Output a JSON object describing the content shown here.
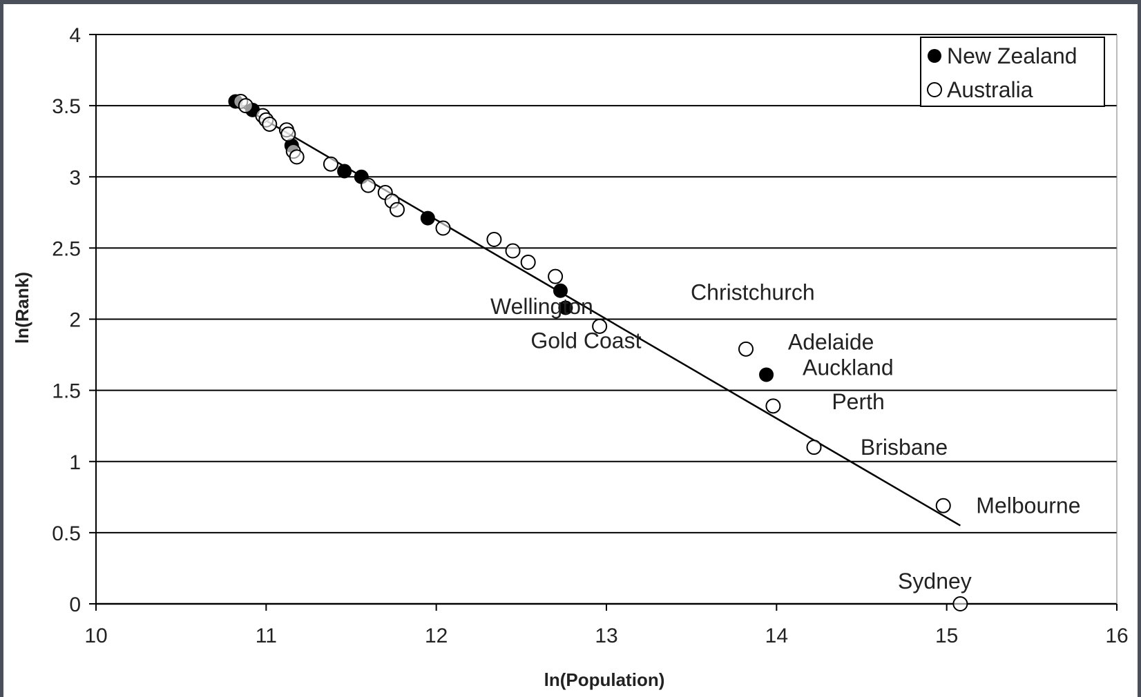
{
  "chart_data": {
    "type": "scatter",
    "xlabel": "ln(Population)",
    "ylabel": "ln(Rank)",
    "xlim": [
      10,
      16
    ],
    "ylim": [
      0,
      4
    ],
    "xticks": [
      "10",
      "11",
      "12",
      "13",
      "14",
      "15",
      "16"
    ],
    "yticks": [
      "0",
      "0.5",
      "1",
      "1.5",
      "2",
      "2.5",
      "3",
      "3.5",
      "4"
    ],
    "grid": "horizontal",
    "legend_position": "top-right",
    "series": [
      {
        "name": "New Zealand",
        "marker": "filled-circle",
        "color": "#000000",
        "points": [
          {
            "x": 10.82,
            "y": 3.53
          },
          {
            "x": 10.92,
            "y": 3.47
          },
          {
            "x": 11.15,
            "y": 3.22
          },
          {
            "x": 11.46,
            "y": 3.04
          },
          {
            "x": 11.56,
            "y": 3.0
          },
          {
            "x": 11.95,
            "y": 2.71
          },
          {
            "x": 12.73,
            "y": 2.2
          },
          {
            "x": 12.76,
            "y": 2.08
          },
          {
            "x": 13.94,
            "y": 1.61
          }
        ]
      },
      {
        "name": "Australia",
        "marker": "open-circle",
        "color": "#000000",
        "points": [
          {
            "x": 10.85,
            "y": 3.53
          },
          {
            "x": 10.88,
            "y": 3.5
          },
          {
            "x": 10.98,
            "y": 3.43
          },
          {
            "x": 11.0,
            "y": 3.4
          },
          {
            "x": 11.02,
            "y": 3.37
          },
          {
            "x": 11.12,
            "y": 3.33
          },
          {
            "x": 11.13,
            "y": 3.3
          },
          {
            "x": 11.16,
            "y": 3.18
          },
          {
            "x": 11.18,
            "y": 3.14
          },
          {
            "x": 11.38,
            "y": 3.09
          },
          {
            "x": 11.6,
            "y": 2.94
          },
          {
            "x": 11.7,
            "y": 2.89
          },
          {
            "x": 11.74,
            "y": 2.83
          },
          {
            "x": 11.77,
            "y": 2.77
          },
          {
            "x": 12.04,
            "y": 2.64
          },
          {
            "x": 12.34,
            "y": 2.56
          },
          {
            "x": 12.45,
            "y": 2.48
          },
          {
            "x": 12.54,
            "y": 2.4
          },
          {
            "x": 12.7,
            "y": 2.3
          },
          {
            "x": 12.96,
            "y": 1.95
          },
          {
            "x": 13.82,
            "y": 1.79
          },
          {
            "x": 13.98,
            "y": 1.39
          },
          {
            "x": 14.22,
            "y": 1.1
          },
          {
            "x": 14.98,
            "y": 0.69
          },
          {
            "x": 15.08,
            "y": 0.0
          }
        ]
      }
    ],
    "trendline": {
      "x": [
        10.82,
        15.08
      ],
      "y": [
        3.52,
        0.55
      ]
    },
    "annotations": [
      {
        "text": "Christchurch",
        "x": 13.86,
        "y": 2.19
      },
      {
        "text": "Wellington",
        "x": 12.62,
        "y": 2.09
      },
      {
        "text": "Gold Coast",
        "x": 12.88,
        "y": 1.85
      },
      {
        "text": "Adelaide",
        "x": 14.32,
        "y": 1.84
      },
      {
        "text": "Auckland",
        "x": 14.42,
        "y": 1.66
      },
      {
        "text": "Perth",
        "x": 14.48,
        "y": 1.42
      },
      {
        "text": "Brisbane",
        "x": 14.75,
        "y": 1.1
      },
      {
        "text": "Melbourne",
        "x": 15.48,
        "y": 0.69
      },
      {
        "text": "Sydney",
        "x": 14.93,
        "y": 0.16
      }
    ]
  }
}
